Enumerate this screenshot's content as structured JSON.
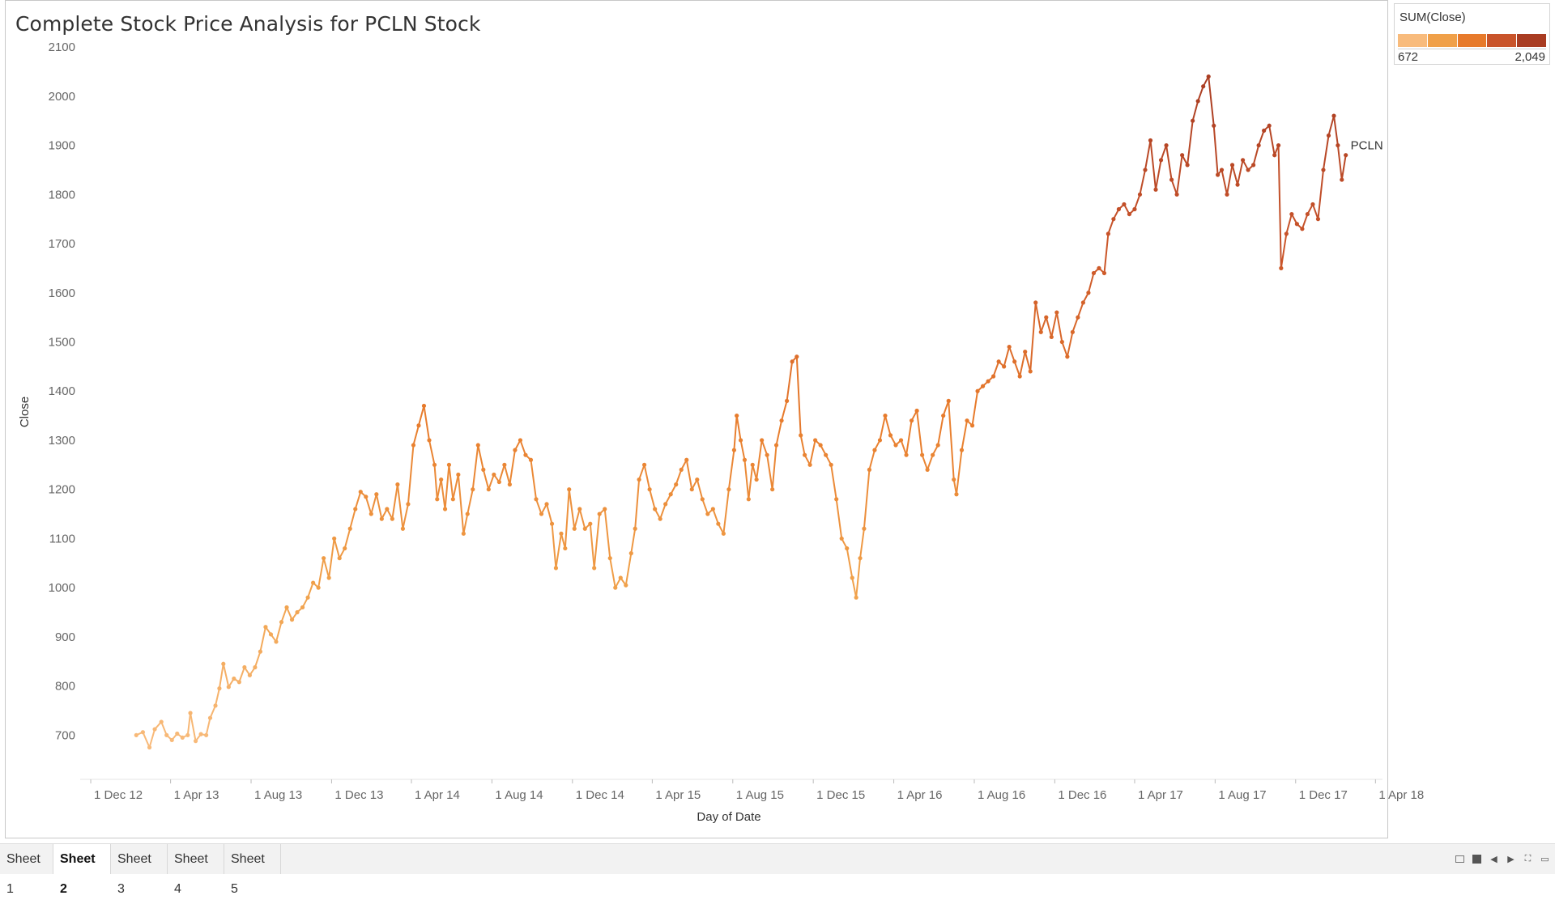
{
  "title": "Complete Stock Price Analysis for PCLN Stock",
  "legend": {
    "title": "SUM(Close)",
    "min_label": "672",
    "max_label": "2,049",
    "colors": [
      "#f8bb7c",
      "#f0a049",
      "#e77a2b",
      "#c9542a",
      "#a93c22"
    ]
  },
  "chart_data": {
    "type": "line",
    "title": "Complete Stock Price Analysis for PCLN Stock",
    "xlabel": "Day of Date",
    "ylabel": "Close",
    "x_ticks": [
      "1 Dec 12",
      "1 Apr 13",
      "1 Aug 13",
      "1 Dec 13",
      "1 Apr 14",
      "1 Aug 14",
      "1 Dec 14",
      "1 Apr 15",
      "1 Aug 15",
      "1 Dec 15",
      "1 Apr 16",
      "1 Aug 16",
      "1 Dec 16",
      "1 Apr 17",
      "1 Aug 17",
      "1 Dec 17",
      "1 Apr 18"
    ],
    "y_ticks": [
      700,
      800,
      900,
      1000,
      1100,
      1200,
      1300,
      1400,
      1500,
      1600,
      1700,
      1800,
      1900,
      2000,
      2100
    ],
    "xlim": [
      "2012-11-15",
      "2018-04-19"
    ],
    "ylim": [
      610,
      2115
    ],
    "grid": false,
    "color_range": [
      672,
      2049
    ],
    "end_label": "PCLN",
    "series": [
      {
        "name": "PCLN",
        "points": [
          [
            "2013-02-08",
            700
          ],
          [
            "2013-02-18",
            706
          ],
          [
            "2013-02-28",
            675
          ],
          [
            "2013-03-08",
            712
          ],
          [
            "2013-03-18",
            727
          ],
          [
            "2013-03-26",
            700
          ],
          [
            "2013-04-03",
            690
          ],
          [
            "2013-04-11",
            703
          ],
          [
            "2013-04-19",
            695
          ],
          [
            "2013-04-27",
            700
          ],
          [
            "2013-05-01",
            745
          ],
          [
            "2013-05-09",
            688
          ],
          [
            "2013-05-17",
            702
          ],
          [
            "2013-05-25",
            700
          ],
          [
            "2013-05-31",
            735
          ],
          [
            "2013-06-08",
            760
          ],
          [
            "2013-06-14",
            795
          ],
          [
            "2013-06-20",
            845
          ],
          [
            "2013-06-28",
            798
          ],
          [
            "2013-07-06",
            815
          ],
          [
            "2013-07-14",
            808
          ],
          [
            "2013-07-22",
            838
          ],
          [
            "2013-07-30",
            822
          ],
          [
            "2013-08-07",
            838
          ],
          [
            "2013-08-15",
            870
          ],
          [
            "2013-08-23",
            920
          ],
          [
            "2013-08-31",
            905
          ],
          [
            "2013-09-08",
            890
          ],
          [
            "2013-09-16",
            930
          ],
          [
            "2013-09-24",
            960
          ],
          [
            "2013-10-02",
            935
          ],
          [
            "2013-10-10",
            950
          ],
          [
            "2013-10-18",
            960
          ],
          [
            "2013-10-26",
            980
          ],
          [
            "2013-11-03",
            1010
          ],
          [
            "2013-11-11",
            1000
          ],
          [
            "2013-11-19",
            1060
          ],
          [
            "2013-11-27",
            1020
          ],
          [
            "2013-12-05",
            1100
          ],
          [
            "2013-12-13",
            1060
          ],
          [
            "2013-12-21",
            1080
          ],
          [
            "2013-12-29",
            1120
          ],
          [
            "2014-01-06",
            1160
          ],
          [
            "2014-01-14",
            1195
          ],
          [
            "2014-01-22",
            1185
          ],
          [
            "2014-01-30",
            1150
          ],
          [
            "2014-02-07",
            1190
          ],
          [
            "2014-02-15",
            1140
          ],
          [
            "2014-02-23",
            1160
          ],
          [
            "2014-03-03",
            1140
          ],
          [
            "2014-03-11",
            1210
          ],
          [
            "2014-03-19",
            1120
          ],
          [
            "2014-03-27",
            1170
          ],
          [
            "2014-04-04",
            1290
          ],
          [
            "2014-04-12",
            1330
          ],
          [
            "2014-04-20",
            1370
          ],
          [
            "2014-04-28",
            1300
          ],
          [
            "2014-05-06",
            1250
          ],
          [
            "2014-05-10",
            1180
          ],
          [
            "2014-05-16",
            1220
          ],
          [
            "2014-05-22",
            1160
          ],
          [
            "2014-05-28",
            1250
          ],
          [
            "2014-06-03",
            1180
          ],
          [
            "2014-06-11",
            1230
          ],
          [
            "2014-06-19",
            1110
          ],
          [
            "2014-06-25",
            1150
          ],
          [
            "2014-07-03",
            1200
          ],
          [
            "2014-07-11",
            1290
          ],
          [
            "2014-07-19",
            1240
          ],
          [
            "2014-07-27",
            1200
          ],
          [
            "2014-08-04",
            1230
          ],
          [
            "2014-08-12",
            1215
          ],
          [
            "2014-08-20",
            1250
          ],
          [
            "2014-08-28",
            1210
          ],
          [
            "2014-09-05",
            1280
          ],
          [
            "2014-09-13",
            1300
          ],
          [
            "2014-09-21",
            1270
          ],
          [
            "2014-09-29",
            1260
          ],
          [
            "2014-10-07",
            1180
          ],
          [
            "2014-10-15",
            1150
          ],
          [
            "2014-10-23",
            1170
          ],
          [
            "2014-10-31",
            1130
          ],
          [
            "2014-11-06",
            1040
          ],
          [
            "2014-11-14",
            1110
          ],
          [
            "2014-11-20",
            1080
          ],
          [
            "2014-11-26",
            1200
          ],
          [
            "2014-12-04",
            1120
          ],
          [
            "2014-12-12",
            1160
          ],
          [
            "2014-12-20",
            1120
          ],
          [
            "2014-12-28",
            1130
          ],
          [
            "2015-01-03",
            1040
          ],
          [
            "2015-01-11",
            1150
          ],
          [
            "2015-01-19",
            1160
          ],
          [
            "2015-01-27",
            1060
          ],
          [
            "2015-02-04",
            1000
          ],
          [
            "2015-02-12",
            1020
          ],
          [
            "2015-02-20",
            1005
          ],
          [
            "2015-02-28",
            1070
          ],
          [
            "2015-03-06",
            1120
          ],
          [
            "2015-03-12",
            1220
          ],
          [
            "2015-03-20",
            1250
          ],
          [
            "2015-03-28",
            1200
          ],
          [
            "2015-04-05",
            1160
          ],
          [
            "2015-04-13",
            1140
          ],
          [
            "2015-04-21",
            1170
          ],
          [
            "2015-04-29",
            1190
          ],
          [
            "2015-05-07",
            1210
          ],
          [
            "2015-05-15",
            1240
          ],
          [
            "2015-05-23",
            1260
          ],
          [
            "2015-05-31",
            1200
          ],
          [
            "2015-06-08",
            1220
          ],
          [
            "2015-06-16",
            1180
          ],
          [
            "2015-06-24",
            1150
          ],
          [
            "2015-07-02",
            1160
          ],
          [
            "2015-07-10",
            1130
          ],
          [
            "2015-07-18",
            1110
          ],
          [
            "2015-07-26",
            1200
          ],
          [
            "2015-08-03",
            1280
          ],
          [
            "2015-08-07",
            1350
          ],
          [
            "2015-08-13",
            1300
          ],
          [
            "2015-08-19",
            1260
          ],
          [
            "2015-08-25",
            1180
          ],
          [
            "2015-08-31",
            1250
          ],
          [
            "2015-09-06",
            1220
          ],
          [
            "2015-09-14",
            1300
          ],
          [
            "2015-09-22",
            1270
          ],
          [
            "2015-09-30",
            1200
          ],
          [
            "2015-10-06",
            1290
          ],
          [
            "2015-10-14",
            1340
          ],
          [
            "2015-10-22",
            1380
          ],
          [
            "2015-10-30",
            1460
          ],
          [
            "2015-11-06",
            1470
          ],
          [
            "2015-11-12",
            1310
          ],
          [
            "2015-11-18",
            1270
          ],
          [
            "2015-11-26",
            1250
          ],
          [
            "2015-12-04",
            1300
          ],
          [
            "2015-12-12",
            1290
          ],
          [
            "2015-12-20",
            1270
          ],
          [
            "2015-12-28",
            1250
          ],
          [
            "2016-01-05",
            1180
          ],
          [
            "2016-01-13",
            1100
          ],
          [
            "2016-01-21",
            1080
          ],
          [
            "2016-01-29",
            1020
          ],
          [
            "2016-02-04",
            980
          ],
          [
            "2016-02-10",
            1060
          ],
          [
            "2016-02-16",
            1120
          ],
          [
            "2016-02-24",
            1240
          ],
          [
            "2016-03-03",
            1280
          ],
          [
            "2016-03-11",
            1300
          ],
          [
            "2016-03-19",
            1350
          ],
          [
            "2016-03-27",
            1310
          ],
          [
            "2016-04-04",
            1290
          ],
          [
            "2016-04-12",
            1300
          ],
          [
            "2016-04-20",
            1270
          ],
          [
            "2016-04-28",
            1340
          ],
          [
            "2016-05-06",
            1360
          ],
          [
            "2016-05-14",
            1270
          ],
          [
            "2016-05-22",
            1240
          ],
          [
            "2016-05-30",
            1270
          ],
          [
            "2016-06-07",
            1290
          ],
          [
            "2016-06-15",
            1350
          ],
          [
            "2016-06-23",
            1380
          ],
          [
            "2016-07-01",
            1220
          ],
          [
            "2016-07-05",
            1190
          ],
          [
            "2016-07-13",
            1280
          ],
          [
            "2016-07-21",
            1340
          ],
          [
            "2016-07-29",
            1330
          ],
          [
            "2016-08-06",
            1400
          ],
          [
            "2016-08-14",
            1410
          ],
          [
            "2016-08-22",
            1420
          ],
          [
            "2016-08-30",
            1430
          ],
          [
            "2016-09-07",
            1460
          ],
          [
            "2016-09-15",
            1450
          ],
          [
            "2016-09-23",
            1490
          ],
          [
            "2016-10-01",
            1460
          ],
          [
            "2016-10-09",
            1430
          ],
          [
            "2016-10-17",
            1480
          ],
          [
            "2016-10-25",
            1440
          ],
          [
            "2016-11-02",
            1580
          ],
          [
            "2016-11-10",
            1520
          ],
          [
            "2016-11-18",
            1550
          ],
          [
            "2016-11-26",
            1510
          ],
          [
            "2016-12-04",
            1560
          ],
          [
            "2016-12-12",
            1500
          ],
          [
            "2016-12-20",
            1470
          ],
          [
            "2016-12-28",
            1520
          ],
          [
            "2017-01-05",
            1550
          ],
          [
            "2017-01-13",
            1580
          ],
          [
            "2017-01-21",
            1600
          ],
          [
            "2017-01-29",
            1640
          ],
          [
            "2017-02-06",
            1650
          ],
          [
            "2017-02-14",
            1640
          ],
          [
            "2017-02-20",
            1720
          ],
          [
            "2017-02-28",
            1750
          ],
          [
            "2017-03-08",
            1770
          ],
          [
            "2017-03-16",
            1780
          ],
          [
            "2017-03-24",
            1760
          ],
          [
            "2017-04-01",
            1770
          ],
          [
            "2017-04-09",
            1800
          ],
          [
            "2017-04-17",
            1850
          ],
          [
            "2017-04-25",
            1910
          ],
          [
            "2017-05-03",
            1810
          ],
          [
            "2017-05-11",
            1870
          ],
          [
            "2017-05-19",
            1900
          ],
          [
            "2017-05-27",
            1830
          ],
          [
            "2017-06-04",
            1800
          ],
          [
            "2017-06-12",
            1880
          ],
          [
            "2017-06-20",
            1860
          ],
          [
            "2017-06-28",
            1950
          ],
          [
            "2017-07-06",
            1990
          ],
          [
            "2017-07-14",
            2020
          ],
          [
            "2017-07-22",
            2040
          ],
          [
            "2017-07-30",
            1940
          ],
          [
            "2017-08-05",
            1840
          ],
          [
            "2017-08-11",
            1850
          ],
          [
            "2017-08-19",
            1800
          ],
          [
            "2017-08-27",
            1860
          ],
          [
            "2017-09-04",
            1820
          ],
          [
            "2017-09-12",
            1870
          ],
          [
            "2017-09-20",
            1850
          ],
          [
            "2017-09-28",
            1860
          ],
          [
            "2017-10-06",
            1900
          ],
          [
            "2017-10-14",
            1930
          ],
          [
            "2017-10-22",
            1940
          ],
          [
            "2017-10-30",
            1880
          ],
          [
            "2017-11-05",
            1900
          ],
          [
            "2017-11-09",
            1650
          ],
          [
            "2017-11-17",
            1720
          ],
          [
            "2017-11-25",
            1760
          ],
          [
            "2017-12-03",
            1740
          ],
          [
            "2017-12-11",
            1730
          ],
          [
            "2017-12-19",
            1760
          ],
          [
            "2017-12-27",
            1780
          ],
          [
            "2018-01-04",
            1750
          ],
          [
            "2018-01-12",
            1850
          ],
          [
            "2018-01-20",
            1920
          ],
          [
            "2018-01-28",
            1960
          ],
          [
            "2018-02-03",
            1900
          ],
          [
            "2018-02-09",
            1830
          ],
          [
            "2018-02-15",
            1880
          ]
        ]
      }
    ]
  },
  "tabs": [
    "Sheet 1",
    "Sheet 2",
    "Sheet 3",
    "Sheet 4",
    "Sheet 5"
  ],
  "active_tab": "Sheet 2"
}
